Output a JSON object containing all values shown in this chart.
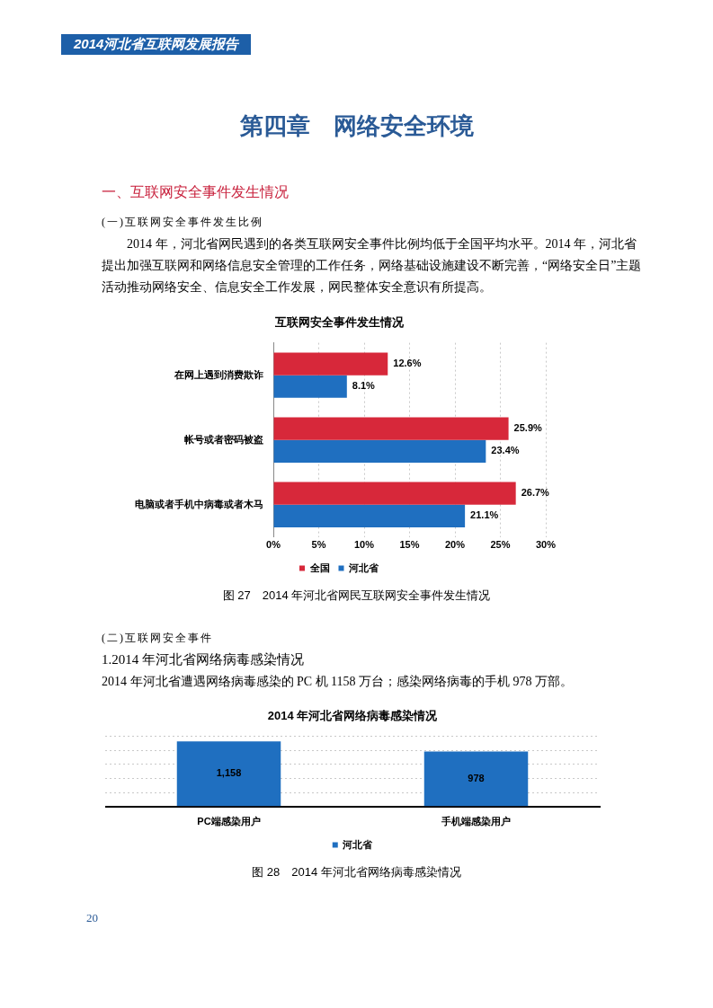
{
  "chart_data": [
    {
      "type": "bar",
      "orientation": "horizontal",
      "title": "互联网安全事件发生情况",
      "subtitle": "图 27　2014 年河北省网民互联网安全事件发生情况",
      "annotations": [
        "2014河北省互联网发展报告",
        "第四章　网络安全环境",
        "一、互联网安全事件发生情况",
        "(一)互联网安全事件发生比例",
        "2014 年，河北省网民遇到的各类互联网安全事件比例均低于全国平均水平。2014 年，河北省提出加强互联网和网络信息安全管理的工作任务，网络基础设施建设不断完善，“网络安全日”主题活动推动网络安全、信息安全工作发展，网民整体安全意识有所提高。"
      ],
      "categories": [
        "在网上遇到消费欺诈",
        "帐号或者密码被盗",
        "电脑或者手机中病毒或者木马"
      ],
      "series": [
        {
          "name": "全国",
          "color": "#d7283a",
          "values": [
            12.6,
            25.9,
            26.7
          ],
          "value_labels": [
            "12.6%",
            "25.9%",
            "26.7%"
          ]
        },
        {
          "name": "河北省",
          "color": "#1f6fc0",
          "values": [
            8.1,
            23.4,
            21.1
          ],
          "value_labels": [
            "8.1%",
            "23.4%",
            "21.1%"
          ]
        }
      ],
      "xlim": [
        0,
        30
      ],
      "xticks": [
        {
          "value": 0,
          "label": "0%"
        },
        {
          "value": 5,
          "label": "5%"
        },
        {
          "value": 10,
          "label": "10%"
        },
        {
          "value": 15,
          "label": "15%"
        },
        {
          "value": 20,
          "label": "20%"
        },
        {
          "value": 25,
          "label": "25%"
        },
        {
          "value": 30,
          "label": "30%"
        }
      ],
      "grid": "x",
      "legend": "bottom"
    },
    {
      "type": "bar",
      "title": "2014 年河北省网络病毒感染情况",
      "subtitle": "图 28　2014 年河北省网络病毒感染情况",
      "annotations": [
        "(二)互联网安全事件",
        "1.2014 年河北省网络病毒感染情况",
        "2014 年河北省遭遇网络病毒感染的 PC 机 1158 万台；感染网络病毒的手机 978 万部。",
        "20"
      ],
      "categories": [
        "PC端感染用户",
        "手机端感染用户"
      ],
      "series": [
        {
          "name": "河北省",
          "color": "#1f6fc0",
          "values": [
            1158,
            978
          ],
          "value_labels": [
            "1,158",
            "978"
          ]
        }
      ],
      "ylim": [
        0,
        1250
      ],
      "yticks": [
        {
          "value": 0,
          "label": null
        },
        {
          "value": 250,
          "label": null
        },
        {
          "value": 500,
          "label": null
        },
        {
          "value": 750,
          "label": null
        },
        {
          "value": 1000,
          "label": null
        },
        {
          "value": 1250,
          "label": null
        }
      ],
      "grid": "y",
      "tick_labels": "x",
      "legend": "bottom"
    }
  ]
}
